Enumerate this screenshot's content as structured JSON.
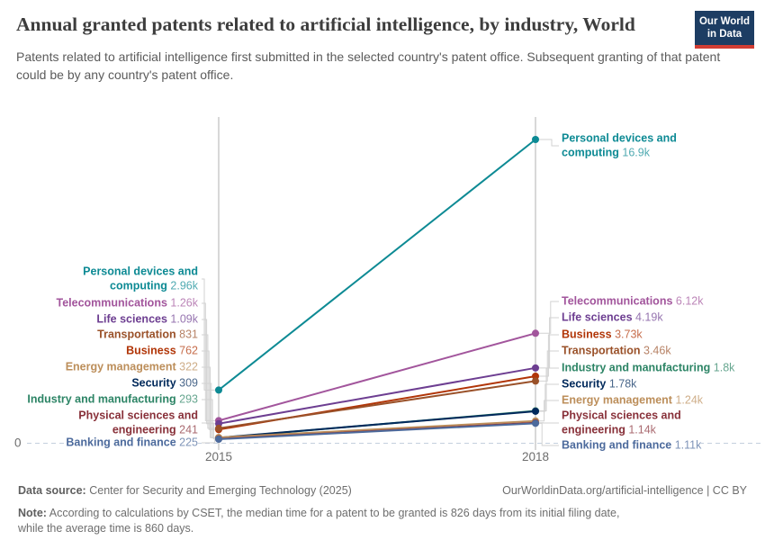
{
  "header": {
    "title": "Annual granted patents related to artificial intelligence, by industry, World",
    "subtitle": "Patents related to artificial intelligence first submitted in the selected country's patent office. Subsequent granting of that patent could be by any country's patent office.",
    "logo": {
      "line1": "Our World",
      "line2": "in Data",
      "bg_color": "#1d3d63",
      "accent_color": "#d13d33"
    }
  },
  "chart_data": {
    "type": "line",
    "subtype": "slope",
    "title": "Annual granted patents related to artificial intelligence, by industry, World",
    "x": [
      2015,
      2018
    ],
    "x_labels": [
      "2015",
      "2018"
    ],
    "y_zero_label": "0",
    "ylim": [
      0,
      16900
    ],
    "grid": "zero-line-dashed-only",
    "legend_position": "labels-on-both-ends",
    "axis_color": "#cccccc",
    "zero_line_color": "#c4cfdd",
    "leader_line_color": "#d2d2d2",
    "series": [
      {
        "name": "Personal devices and computing",
        "values": [
          2960,
          16900
        ],
        "display": [
          "2.96k",
          "16.9k"
        ],
        "color": "#0d8a94"
      },
      {
        "name": "Telecommunications",
        "values": [
          1260,
          6120
        ],
        "display": [
          "1.26k",
          "6.12k"
        ],
        "color": "#a2559c"
      },
      {
        "name": "Life sciences",
        "values": [
          1090,
          4190
        ],
        "display": [
          "1.09k",
          "4.19k"
        ],
        "color": "#6d3e91"
      },
      {
        "name": "Business",
        "values": [
          762,
          3730
        ],
        "display": [
          "762",
          "3.73k"
        ],
        "color": "#b13507"
      },
      {
        "name": "Transportation",
        "values": [
          831,
          3460
        ],
        "display": [
          "831",
          "3.46k"
        ],
        "color": "#9a5129"
      },
      {
        "name": "Industry and manufacturing",
        "values": [
          293,
          1800
        ],
        "display": [
          "293",
          "1.8k"
        ],
        "color": "#2c8465"
      },
      {
        "name": "Security",
        "values": [
          309,
          1780
        ],
        "display": [
          "309",
          "1.78k"
        ],
        "color": "#00295b"
      },
      {
        "name": "Energy management",
        "values": [
          322,
          1240
        ],
        "display": [
          "322",
          "1.24k"
        ],
        "color": "#bc8e5a"
      },
      {
        "name": "Physical sciences and engineering",
        "values": [
          241,
          1140
        ],
        "display": [
          "241",
          "1.14k"
        ],
        "color": "#883039"
      },
      {
        "name": "Banking and finance",
        "values": [
          225,
          1110
        ],
        "display": [
          "225",
          "1.11k"
        ],
        "color": "#4c6a9c"
      }
    ]
  },
  "footer": {
    "source_label": "Data source:",
    "source": "Center for Security and Emerging Technology (2025)",
    "rights": "OurWorldinData.org/artificial-intelligence | CC BY",
    "note_label": "Note:",
    "note": "According to calculations by CSET, the median time for a patent to be granted is 826 days from its initial filing date, while the average time is 860 days."
  }
}
